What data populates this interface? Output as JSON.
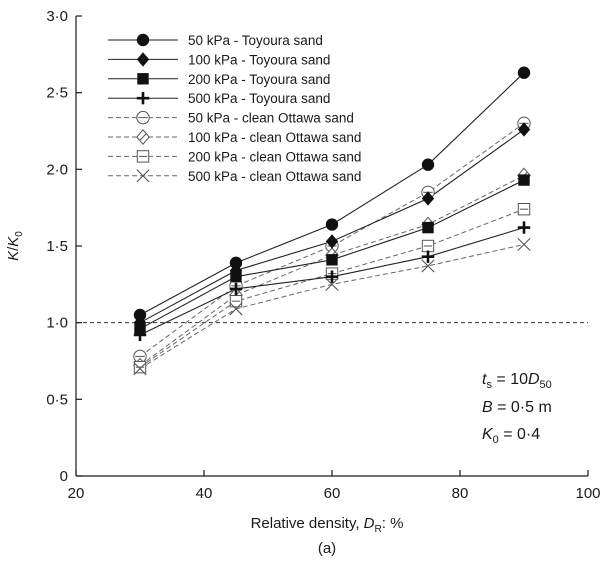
{
  "chart_data": {
    "type": "line",
    "xlabel": "Relative density, D_R: %",
    "xlabel_parts": {
      "main": "Relative density, ",
      "italic": "D",
      "sub": "R",
      "tail": ": %"
    },
    "ylabel_parts": {
      "a": "K",
      "slash": "/",
      "b": "K",
      "sub": "0"
    },
    "panel_label": "(a)",
    "xlim": [
      20,
      100
    ],
    "ylim": [
      0,
      3.0
    ],
    "xticks": [
      "20",
      "40",
      "60",
      "80",
      "100"
    ],
    "xtick_values": [
      20,
      40,
      60,
      80,
      100
    ],
    "yticks": [
      "0",
      "0·5",
      "1·0",
      "1·5",
      "2·0",
      "2·5",
      "3·0"
    ],
    "ytick_values": [
      0,
      0.5,
      1.0,
      1.5,
      2.0,
      2.5,
      3.0
    ],
    "reference_line": {
      "y": 1.0,
      "style": "dashed"
    },
    "legend_position": "top-left",
    "x": [
      30,
      45,
      60,
      75,
      90
    ],
    "series": [
      {
        "name": "50 kPa - Toyoura sand",
        "marker": "filled-circle",
        "line": "solid",
        "values": [
          1.05,
          1.39,
          1.64,
          2.03,
          2.63
        ]
      },
      {
        "name": "100 kPa - Toyoura sand",
        "marker": "filled-diamond",
        "line": "solid",
        "values": [
          1.0,
          1.34,
          1.53,
          1.81,
          2.26
        ]
      },
      {
        "name": "200 kPa - Toyoura sand",
        "marker": "filled-square",
        "line": "solid",
        "values": [
          0.96,
          1.3,
          1.41,
          1.62,
          1.93
        ]
      },
      {
        "name": "500 kPa - Toyoura sand",
        "marker": "plus",
        "line": "solid",
        "values": [
          0.92,
          1.22,
          1.3,
          1.43,
          1.62
        ]
      },
      {
        "name": "50 kPa - clean Ottawa sand",
        "marker": "open-circle-bar",
        "line": "dashed",
        "values": [
          0.78,
          1.24,
          1.5,
          1.85,
          2.3
        ]
      },
      {
        "name": "100 kPa - clean Ottawa sand",
        "marker": "open-diamond",
        "line": "dashed",
        "values": [
          0.72,
          1.18,
          1.44,
          1.64,
          1.96
        ]
      },
      {
        "name": "200 kPa - clean Ottawa sand",
        "marker": "open-square-bar",
        "line": "dashed",
        "values": [
          0.71,
          1.14,
          1.32,
          1.5,
          1.74
        ]
      },
      {
        "name": "500 kPa - clean Ottawa sand",
        "marker": "cross",
        "line": "dashed",
        "values": [
          0.7,
          1.09,
          1.25,
          1.37,
          1.51
        ]
      }
    ],
    "annotations": [
      {
        "id": "ts",
        "parts": {
          "sym": "t",
          "sub": "s",
          "eq": " = 10",
          "sym2": "D",
          "sub2": "50"
        }
      },
      {
        "id": "b",
        "parts": {
          "sym": "B",
          "eq": " = 0·5 m"
        }
      },
      {
        "id": "k0",
        "parts": {
          "sym": "K",
          "sub": "0",
          "eq": " = 0·4"
        }
      }
    ]
  }
}
